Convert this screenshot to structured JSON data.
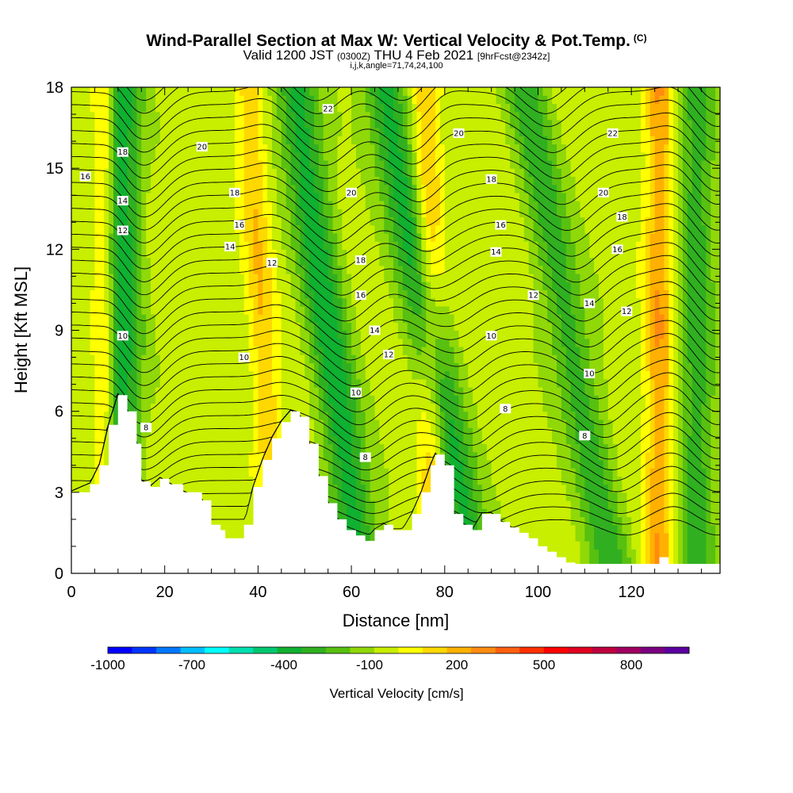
{
  "title": {
    "main": "Wind-Parallel Section at Max W: Vertical Velocity & Pot.Temp.",
    "copyright": "(C)",
    "valid_prefix": "Valid 1200 JST",
    "utc": "(0300Z)",
    "valid_date": "THU 4 Feb 2021",
    "forecast": "[9hrFcst@2342z]",
    "indices": "i,j,k,angle=71,74,24,100"
  },
  "chart_data": {
    "type": "heatmap",
    "xlabel": "Distance [nm]",
    "ylabel": "Height [Kft MSL]",
    "xlim": [
      0,
      139
    ],
    "ylim": [
      0,
      18
    ],
    "x_ticks": [
      "0",
      "20",
      "40",
      "60",
      "80",
      "100",
      "120"
    ],
    "y_ticks": [
      "0",
      "3",
      "6",
      "9",
      "12",
      "15",
      "18"
    ],
    "terrain_kft": {
      "x": [
        0,
        4,
        6,
        8,
        10,
        12,
        14,
        15,
        17,
        19,
        21,
        24,
        28,
        30,
        32,
        33,
        35,
        37,
        39,
        41,
        43,
        45,
        47,
        49,
        51,
        53,
        55,
        57,
        59,
        61,
        63,
        65,
        67,
        69,
        71,
        73,
        75,
        77,
        78,
        80,
        82,
        84,
        86,
        88,
        90,
        92,
        94,
        96,
        98,
        100,
        102,
        104,
        106,
        108,
        110,
        115,
        120,
        124,
        126,
        128,
        130,
        139
      ],
      "y": [
        3.0,
        3.3,
        4.0,
        5.5,
        6.6,
        6.0,
        4.8,
        3.4,
        3.2,
        3.5,
        3.3,
        3.0,
        2.7,
        1.8,
        1.6,
        1.3,
        1.3,
        1.8,
        3.2,
        4.2,
        5.0,
        5.6,
        6.0,
        5.8,
        4.8,
        3.6,
        2.6,
        2.0,
        1.6,
        1.4,
        1.2,
        1.6,
        1.8,
        1.6,
        1.6,
        2.2,
        3.0,
        4.0,
        4.4,
        4.0,
        2.2,
        1.8,
        1.6,
        2.2,
        2.2,
        1.9,
        1.7,
        1.5,
        1.3,
        1.0,
        0.8,
        0.6,
        0.4,
        0.35,
        0.35,
        0.35,
        0.35,
        0.35,
        0.6,
        0.35,
        0.35,
        0.35
      ]
    },
    "w_bands": [
      {
        "x_crest_18kft": 11,
        "x_crest_0kft": 11,
        "w": -400,
        "halfwidth_nm": 4
      },
      {
        "x_crest_18kft": 48,
        "x_crest_0kft": 62,
        "w": -400,
        "halfwidth_nm": 4.5
      },
      {
        "x_crest_18kft": 67,
        "x_crest_0kft": 86,
        "w": -400,
        "halfwidth_nm": 4.5
      },
      {
        "x_crest_18kft": 97,
        "x_crest_0kft": 116,
        "w": -300,
        "halfwidth_nm": 4.5
      },
      {
        "x_crest_18kft": 134,
        "x_crest_0kft": 134,
        "w": -300,
        "halfwidth_nm": 4
      },
      {
        "x_crest_18kft": 7,
        "x_crest_0kft": 7,
        "w": 250,
        "halfwidth_nm": 2.2
      },
      {
        "x_crest_18kft": 38,
        "x_crest_0kft": 44,
        "w": 250,
        "halfwidth_nm": 3
      },
      {
        "x_crest_18kft": 76,
        "x_crest_0kft": 78,
        "w": 300,
        "halfwidth_nm": 3
      },
      {
        "x_crest_18kft": 126,
        "x_crest_0kft": 126,
        "w": 350,
        "halfwidth_nm": 3
      }
    ],
    "theta_contour_labels": [
      {
        "text": "18",
        "x": 11,
        "y": 15.6
      },
      {
        "text": "16",
        "x": 3,
        "y": 14.7
      },
      {
        "text": "14",
        "x": 11,
        "y": 13.8
      },
      {
        "text": "12",
        "x": 11,
        "y": 12.7
      },
      {
        "text": "20",
        "x": 28,
        "y": 15.8
      },
      {
        "text": "18",
        "x": 35,
        "y": 14.1
      },
      {
        "text": "16",
        "x": 36,
        "y": 12.9
      },
      {
        "text": "14",
        "x": 34,
        "y": 12.1
      },
      {
        "text": "12",
        "x": 43,
        "y": 11.5
      },
      {
        "text": "10",
        "x": 11,
        "y": 8.8
      },
      {
        "text": "10",
        "x": 37,
        "y": 8.0
      },
      {
        "text": "8",
        "x": 16,
        "y": 5.4
      },
      {
        "text": "22",
        "x": 55,
        "y": 17.2
      },
      {
        "text": "20",
        "x": 60,
        "y": 14.1
      },
      {
        "text": "18",
        "x": 62,
        "y": 11.6
      },
      {
        "text": "16",
        "x": 62,
        "y": 10.3
      },
      {
        "text": "14",
        "x": 65,
        "y": 9.0
      },
      {
        "text": "12",
        "x": 68,
        "y": 8.1
      },
      {
        "text": "10",
        "x": 61,
        "y": 6.7
      },
      {
        "text": "8",
        "x": 63,
        "y": 4.3
      },
      {
        "text": "20",
        "x": 83,
        "y": 16.3
      },
      {
        "text": "18",
        "x": 90,
        "y": 14.6
      },
      {
        "text": "16",
        "x": 92,
        "y": 12.9
      },
      {
        "text": "14",
        "x": 91,
        "y": 11.9
      },
      {
        "text": "12",
        "x": 99,
        "y": 10.3
      },
      {
        "text": "10",
        "x": 90,
        "y": 8.8
      },
      {
        "text": "8",
        "x": 93,
        "y": 6.1
      },
      {
        "text": "22",
        "x": 116,
        "y": 16.3
      },
      {
        "text": "20",
        "x": 114,
        "y": 14.1
      },
      {
        "text": "18",
        "x": 118,
        "y": 13.2
      },
      {
        "text": "16",
        "x": 117,
        "y": 12.0
      },
      {
        "text": "14",
        "x": 111,
        "y": 10.0
      },
      {
        "text": "12",
        "x": 119,
        "y": 9.7
      },
      {
        "text": "10",
        "x": 111,
        "y": 7.4
      },
      {
        "text": "8",
        "x": 110,
        "y": 5.1
      }
    ],
    "colorbar": {
      "title": "Vertical Velocity [cm/s]",
      "tick_labels": [
        "-1000",
        "-700",
        "-400",
        "-100",
        "200",
        "500",
        "800"
      ],
      "colors": [
        "#0000ff",
        "#0035ff",
        "#0078ff",
        "#00bfff",
        "#00ffff",
        "#00e0b0",
        "#00c870",
        "#10b030",
        "#30b020",
        "#58c010",
        "#90d808",
        "#c8ee00",
        "#ffff00",
        "#ffd800",
        "#ffb000",
        "#ff8c10",
        "#ff6010",
        "#ff3000",
        "#ff0000",
        "#e00020",
        "#c00040",
        "#a00060",
        "#7a0080",
        "#5a00a0"
      ]
    }
  }
}
